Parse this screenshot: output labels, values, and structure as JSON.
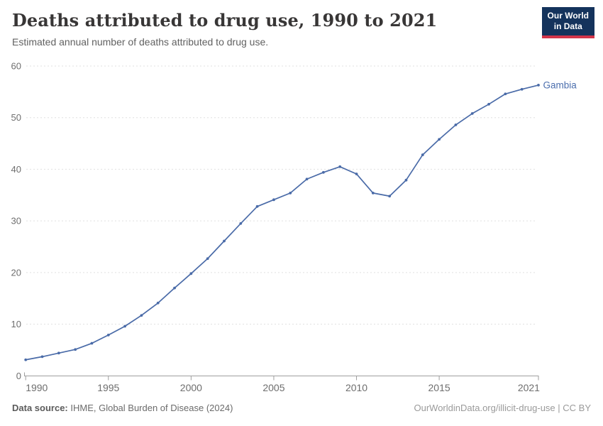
{
  "header": {
    "title": "Deaths attributed to drug use, 1990 to 2021",
    "subtitle": "Estimated annual number of deaths attributed to drug use.",
    "logo": {
      "line1": "Our World",
      "line2": "in Data"
    }
  },
  "footer": {
    "source_label": "Data source:",
    "source_text": " IHME, Global Burden of Disease (2024)",
    "link": "OurWorldinData.org/illicit-drug-use | CC BY"
  },
  "colors": {
    "line": "#4a6ba8",
    "series_label": "#4c6fae",
    "grid": "#e0e0e0",
    "axis": "#9e9e9e",
    "tick_text": "#6e6e6e",
    "logo_bg": "#14335c",
    "logo_accent": "#d2354a"
  },
  "chart_data": {
    "type": "line",
    "title": "Deaths attributed to drug use, 1990 to 2021",
    "subtitle": "Estimated annual number of deaths attributed to drug use.",
    "xlabel": "",
    "ylabel": "",
    "xlim": [
      1990,
      2021
    ],
    "ylim": [
      0,
      60
    ],
    "xticks": [
      1990,
      1995,
      2000,
      2005,
      2010,
      2015,
      2021
    ],
    "yticks": [
      0,
      10,
      20,
      30,
      40,
      50,
      60
    ],
    "grid": "horizontal-dashed",
    "legend_position": "end-of-line-label",
    "x": [
      1990,
      1991,
      1992,
      1993,
      1994,
      1995,
      1996,
      1997,
      1998,
      1999,
      2000,
      2001,
      2002,
      2003,
      2004,
      2005,
      2006,
      2007,
      2008,
      2009,
      2010,
      2011,
      2012,
      2013,
      2014,
      2015,
      2016,
      2017,
      2018,
      2019,
      2020,
      2021
    ],
    "series": [
      {
        "name": "Gambia",
        "color": "#4a6ba8",
        "values": [
          3.1,
          3.7,
          4.4,
          5.1,
          6.3,
          7.9,
          9.6,
          11.7,
          14.1,
          17.0,
          19.8,
          22.7,
          26.1,
          29.5,
          32.8,
          34.1,
          35.4,
          38.1,
          39.4,
          40.5,
          39.1,
          35.4,
          34.8,
          37.9,
          42.8,
          45.8,
          48.6,
          50.8,
          52.6,
          54.6,
          55.5,
          56.3
        ]
      }
    ]
  }
}
